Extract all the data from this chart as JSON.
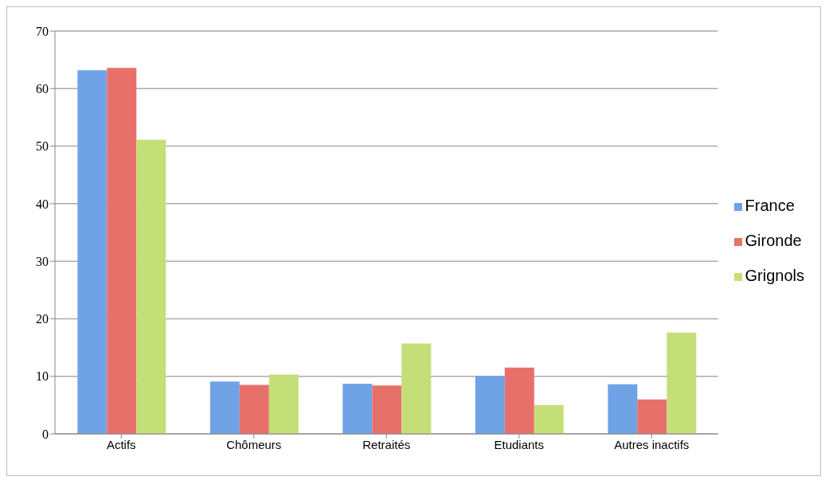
{
  "chart_data": {
    "type": "bar",
    "categories": [
      "Actifs",
      "Chômeurs",
      "Retraités",
      "Etudiants",
      "Autres inactifs"
    ],
    "series": [
      {
        "name": "France",
        "color": "#6fa3e6",
        "values": [
          63.2,
          9.1,
          8.7,
          10.1,
          8.6
        ]
      },
      {
        "name": "Gironde",
        "color": "#e8706b",
        "values": [
          63.6,
          8.5,
          8.4,
          11.5,
          6.0
        ]
      },
      {
        "name": "Grignols",
        "color": "#c4df78",
        "values": [
          51.1,
          10.3,
          15.7,
          5.0,
          17.6
        ]
      }
    ],
    "ylim": [
      0,
      70
    ],
    "yticks": [
      0,
      10,
      20,
      30,
      40,
      50,
      60,
      70
    ],
    "grid": "y",
    "legend": "right"
  }
}
